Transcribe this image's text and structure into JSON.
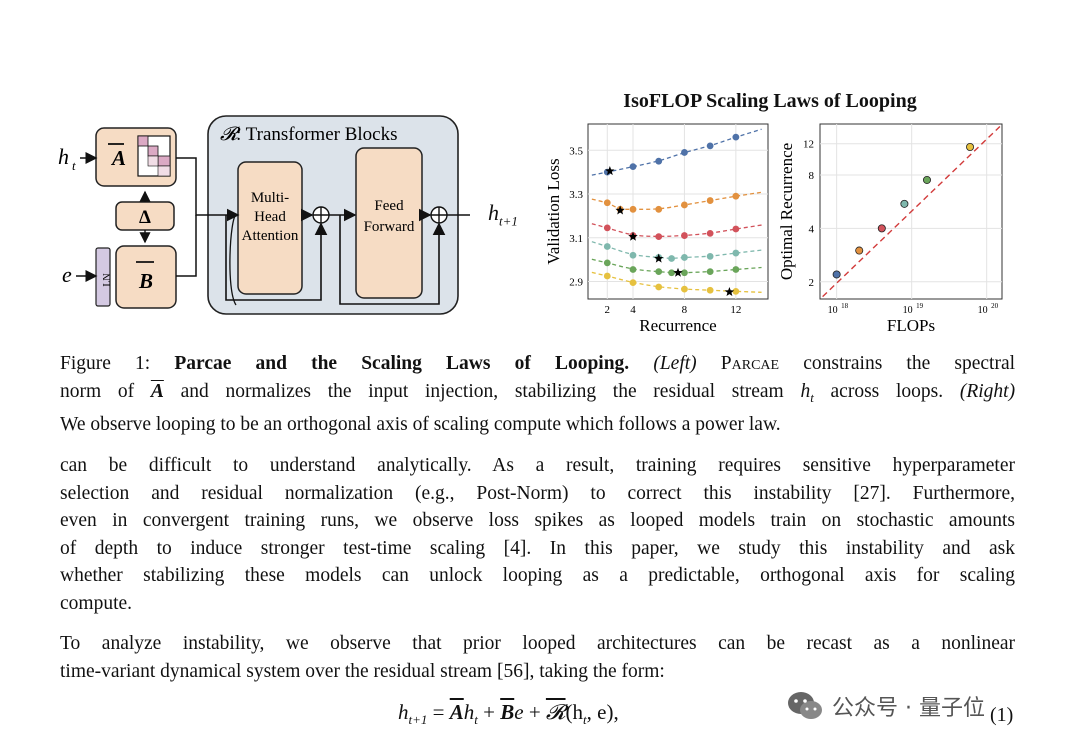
{
  "diagram": {
    "input_h": "h",
    "input_h_sub": "t",
    "input_e": "e",
    "matrix_a": "A",
    "delta": "Δ",
    "matrix_b": "B",
    "ln": "LN",
    "r_symbol": "𝓡",
    "block_title": ": Transformer Blocks",
    "mha_lines": [
      "Multi-",
      "Head",
      "Attention"
    ],
    "ff_lines": [
      "Feed",
      "Forward"
    ],
    "output_h": "h",
    "output_sub": "t+1",
    "plus": "+"
  },
  "chart_title": "IsoFLOP Scaling Laws of Looping",
  "chart_data": [
    {
      "type": "scatter",
      "xlabel": "Recurrence",
      "ylabel": "Validation Loss",
      "x_ticks": [
        "2",
        "4",
        "8",
        "12"
      ],
      "x_tick_values": [
        2,
        4,
        8,
        12
      ],
      "y_ticks": [
        "2.9",
        "3.1",
        "3.3",
        "3.5"
      ],
      "y_tick_values": [
        2.9,
        3.1,
        3.3,
        3.5
      ],
      "xlim": [
        0.5,
        14.5
      ],
      "ylim": [
        2.82,
        3.62
      ],
      "grid": true,
      "series": [
        {
          "color": "#4f72a8",
          "x": [
            2,
            4,
            6,
            8,
            10,
            12
          ],
          "y": [
            3.4,
            3.425,
            3.45,
            3.49,
            3.52,
            3.56
          ],
          "star": {
            "x": 2.2,
            "y": 3.405
          }
        },
        {
          "color": "#e2913f",
          "x": [
            2,
            3,
            4,
            6,
            8,
            10,
            12
          ],
          "y": [
            3.26,
            3.23,
            3.23,
            3.23,
            3.25,
            3.27,
            3.29
          ],
          "star": {
            "x": 3,
            "y": 3.225
          }
        },
        {
          "color": "#d2525b",
          "x": [
            2,
            4,
            6,
            8,
            10,
            12
          ],
          "y": [
            3.145,
            3.11,
            3.105,
            3.11,
            3.12,
            3.14
          ],
          "star": {
            "x": 4,
            "y": 3.105
          }
        },
        {
          "color": "#7fb8ad",
          "x": [
            2,
            4,
            6,
            7,
            8,
            10,
            12
          ],
          "y": [
            3.06,
            3.02,
            3.01,
            3.005,
            3.01,
            3.015,
            3.03
          ],
          "star": {
            "x": 6,
            "y": 3.005
          }
        },
        {
          "color": "#6aa55a",
          "x": [
            2,
            4,
            6,
            7,
            8,
            10,
            12
          ],
          "y": [
            2.985,
            2.955,
            2.945,
            2.94,
            2.94,
            2.945,
            2.955
          ],
          "star": {
            "x": 7.5,
            "y": 2.94
          }
        },
        {
          "color": "#e6c13f",
          "x": [
            2,
            4,
            6,
            8,
            10,
            12
          ],
          "y": [
            2.925,
            2.895,
            2.875,
            2.865,
            2.86,
            2.855
          ],
          "star": {
            "x": 11.5,
            "y": 2.852
          }
        }
      ]
    },
    {
      "type": "scatter",
      "xlabel": "FLOPs",
      "ylabel": "Optimal Recurrence",
      "x_scale": "log",
      "y_scale": "log",
      "x_ticks": [
        "10",
        "10",
        "10"
      ],
      "x_tick_exponents": [
        "18",
        "19",
        "20"
      ],
      "x_tick_values": [
        1e+18,
        1e+19,
        1e+20
      ],
      "y_ticks": [
        "2",
        "4",
        "8",
        "12"
      ],
      "y_tick_values": [
        2,
        4,
        8,
        12
      ],
      "xlim": [
        6e+17,
        1.6e+20
      ],
      "ylim": [
        1.6,
        15.5
      ],
      "grid": true,
      "fit_line": {
        "color": "#d23b3b",
        "from": [
          6.5e+17,
          1.65
        ],
        "to": [
          1.5e+20,
          15
        ]
      },
      "points": [
        {
          "x": 1e+18,
          "y": 2.2,
          "color": "#4f72a8"
        },
        {
          "x": 2e+18,
          "y": 3.0,
          "color": "#e2913f"
        },
        {
          "x": 4e+18,
          "y": 4.0,
          "color": "#d2525b"
        },
        {
          "x": 8e+18,
          "y": 5.5,
          "color": "#7fb8ad"
        },
        {
          "x": 1.6e+19,
          "y": 7.5,
          "color": "#6aa55a"
        },
        {
          "x": 6e+19,
          "y": 11.5,
          "color": "#e6c13f"
        }
      ]
    }
  ],
  "caption": {
    "label": "Figure 1:",
    "title": "Parcae and the Scaling Laws of Looping.",
    "left": "(Left)",
    "parcae": "Parcae",
    "t1": "constrains the spectral",
    "t2a": "norm of",
    "t2b": "and normalizes the input injection, stabilizing the residual stream",
    "t2c": "across loops.",
    "right": "(Right)",
    "line3": "We observe looping to be an orthogonal axis of scaling compute which follows a power law."
  },
  "body1": [
    "can be difficult to understand analytically. As a result, training requires sensitive hyperparameter",
    "selection and residual normalization (e.g., Post-Norm) to correct this instability [27]. Furthermore,",
    "even in convergent training runs, we observe loss spikes as looped models train on stochastic amounts",
    "of depth to induce stronger test-time scaling [4]. In this paper, we study this instability and ask",
    "whether stabilizing these models can unlock looping as a predictable, orthogonal axis for scaling",
    "compute."
  ],
  "body2": [
    "To analyze instability, we observe that prior looped architectures can be recast as a nonlinear",
    "time-variant dynamical system over the residual stream [56], taking the form:"
  ],
  "equation": {
    "lhs": "h",
    "lhs_sub": "t+1",
    "eq": "=",
    "a": "A",
    "h": "h",
    "h_sub": "t",
    "plus1": "+",
    "b": "B",
    "e": "e",
    "plus2": "+",
    "r": "𝓡",
    "args": "(h",
    "args_sub": "t",
    "args_end": ", e),",
    "number": "(1)"
  },
  "watermark": {
    "text": "公众号 · 量子位"
  }
}
